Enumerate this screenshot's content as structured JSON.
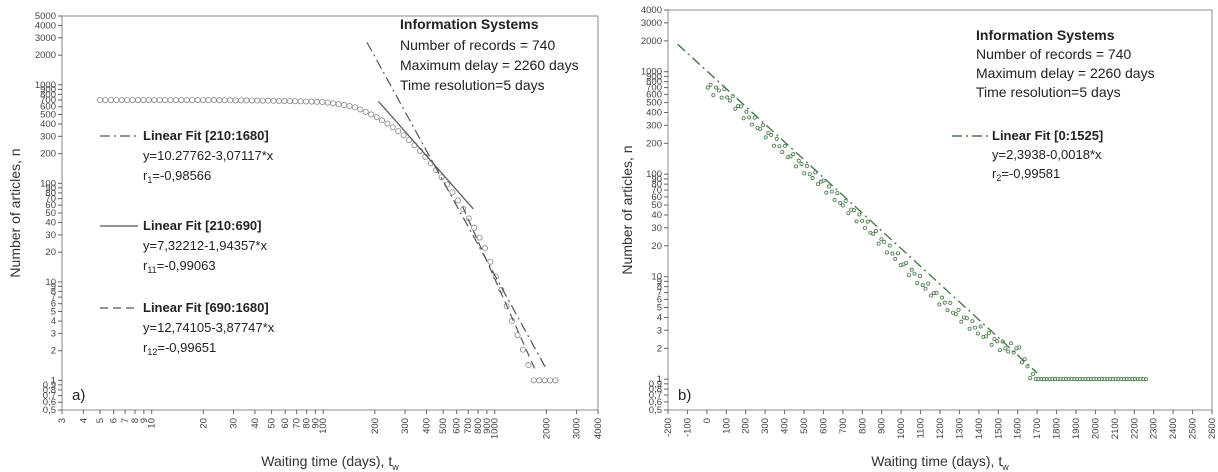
{
  "chart_data": [
    {
      "type": "scatter",
      "panel_label": "a)",
      "xlabel": "Waiting time (days), t",
      "xlabel_sub": "w",
      "ylabel": "Number of articles, n",
      "xscale": "log",
      "yscale": "log",
      "xlim": [
        3,
        4000
      ],
      "ylim": [
        0.5,
        5000
      ],
      "x_ticks": [
        3,
        4,
        5,
        6,
        7,
        8,
        9,
        10,
        20,
        30,
        40,
        50,
        60,
        70,
        80,
        90,
        100,
        200,
        300,
        400,
        500,
        600,
        700,
        800,
        900,
        1000,
        2000,
        3000,
        4000
      ],
      "x_tick_labels": [
        "3",
        "4",
        "5",
        "6",
        "7",
        "8",
        "9",
        "10",
        "20",
        "30",
        "40",
        "50",
        "60",
        "70",
        "80",
        "90",
        "100",
        "200",
        "300",
        "400",
        "500",
        "600",
        "700",
        "800",
        "900",
        "1000",
        "2000",
        "3000",
        "4000"
      ],
      "y_ticks": [
        0.5,
        0.6,
        0.7,
        0.8,
        0.9,
        1,
        2,
        3,
        4,
        5,
        6,
        7,
        8,
        9,
        10,
        20,
        30,
        40,
        50,
        60,
        70,
        80,
        90,
        100,
        200,
        300,
        400,
        500,
        600,
        700,
        800,
        900,
        1000,
        2000,
        3000,
        4000,
        5000
      ],
      "y_tick_labels": [
        "0,5",
        "0,6",
        "0,7",
        "0,8",
        "0,9",
        "1",
        "2",
        "3",
        "4",
        "5",
        "6",
        "7",
        "8",
        "9",
        "10",
        "20",
        "30",
        "40",
        "50",
        "60",
        "70",
        "80",
        "90",
        "100",
        "200",
        "300",
        "400",
        "500",
        "600",
        "700",
        "800",
        "900",
        "1000",
        "2000",
        "3000",
        "4000",
        "5000"
      ],
      "info": {
        "title": "Information Systems",
        "lines": [
          "Number of records = 740",
          "Maximum delay = 2260 days",
          "Time resolution=5 days"
        ]
      },
      "fits": [
        {
          "title": "Linear Fit [210:1680]",
          "equation": "y=10.27762-3,07117*x",
          "r_label": "r",
          "r_sub": "1",
          "r_value": "=-0,98566",
          "style": "dashdot"
        },
        {
          "title": "Linear Fit [210:690]",
          "equation": "y=7,32212-1,94357*x",
          "r_label": "r",
          "r_sub": "11",
          "r_value": "=-0,99063",
          "style": "solid"
        },
        {
          "title": "Linear Fit [690:1680]",
          "equation": "y=12,74105-3,87747*x",
          "r_label": "r",
          "r_sub": "12",
          "r_value": "=-0,99651",
          "style": "dashed"
        }
      ],
      "series": [
        {
          "x": [
            5,
            10,
            20,
            50,
            100,
            150,
            200,
            300,
            400,
            500,
            600,
            700,
            800,
            900,
            1000,
            1100,
            1200,
            1300,
            1400,
            1500,
            1600,
            1680,
            1700,
            1800,
            2000,
            2200,
            2260
          ],
          "y": [
            700,
            700,
            700,
            690,
            670,
            600,
            480,
            300,
            180,
            110,
            70,
            45,
            30,
            20,
            12,
            8,
            5,
            3.5,
            2.5,
            1.8,
            1.3,
            1,
            1,
            1,
            1,
            1,
            1
          ]
        }
      ]
    },
    {
      "type": "scatter",
      "panel_label": "b)",
      "xlabel": "Waiting time (days), t",
      "xlabel_sub": "w",
      "ylabel": "Number of articles, n",
      "xscale": "linear",
      "yscale": "log",
      "xlim": [
        -200,
        2600
      ],
      "ylim": [
        0.5,
        4000
      ],
      "x_ticks": [
        -200,
        -100,
        0,
        100,
        200,
        300,
        400,
        500,
        600,
        700,
        800,
        900,
        1000,
        1100,
        1200,
        1300,
        1400,
        1500,
        1600,
        1700,
        1800,
        1900,
        2000,
        2100,
        2200,
        2300,
        2400,
        2500,
        2600
      ],
      "x_tick_labels": [
        "-200",
        "-100",
        "0",
        "100",
        "200",
        "300",
        "400",
        "500",
        "600",
        "700",
        "800",
        "900",
        "1000",
        "1100",
        "1200",
        "1300",
        "1400",
        "1500",
        "1600",
        "1700",
        "1800",
        "1900",
        "2000",
        "2100",
        "2200",
        "2300",
        "2400",
        "2500",
        "2600"
      ],
      "y_ticks": [
        0.5,
        0.6,
        0.7,
        0.8,
        0.9,
        1,
        2,
        3,
        4,
        5,
        6,
        7,
        8,
        9,
        10,
        20,
        30,
        40,
        50,
        60,
        70,
        80,
        90,
        100,
        200,
        300,
        400,
        500,
        600,
        700,
        800,
        900,
        1000,
        2000,
        3000,
        4000
      ],
      "y_tick_labels": [
        "0,5",
        "0,6",
        "0,7",
        "0,8",
        "0,9",
        "1",
        "2",
        "3",
        "4",
        "5",
        "6",
        "7",
        "8",
        "9",
        "10",
        "20",
        "30",
        "40",
        "50",
        "60",
        "70",
        "80",
        "90",
        "100",
        "200",
        "300",
        "400",
        "500",
        "600",
        "700",
        "800",
        "900",
        "1000",
        "2000",
        "3000",
        "4000"
      ],
      "info": {
        "title": "Information Systems",
        "lines": [
          "Number of records = 740",
          "Maximum delay = 2260 days",
          "Time resolution=5 days"
        ]
      },
      "fits": [
        {
          "title": "Linear Fit [0:1525]",
          "equation": "y=2,3938-0,0018*x",
          "r_label": "r",
          "r_sub": "2",
          "r_value": "=-0,99581",
          "style": "dashdot"
        }
      ],
      "series": [
        {
          "x": [
            5,
            100,
            200,
            300,
            400,
            500,
            600,
            700,
            800,
            900,
            1000,
            1100,
            1200,
            1300,
            1400,
            1500,
            1550,
            1600,
            1680,
            1700,
            1800,
            1900,
            2000,
            2100,
            2200,
            2260
          ],
          "y": [
            700,
            600,
            380,
            260,
            170,
            115,
            80,
            52,
            35,
            22,
            14,
            9,
            6,
            4.2,
            3,
            2.2,
            2,
            2,
            1,
            1,
            1,
            1,
            1,
            1,
            1,
            1
          ]
        }
      ]
    }
  ]
}
